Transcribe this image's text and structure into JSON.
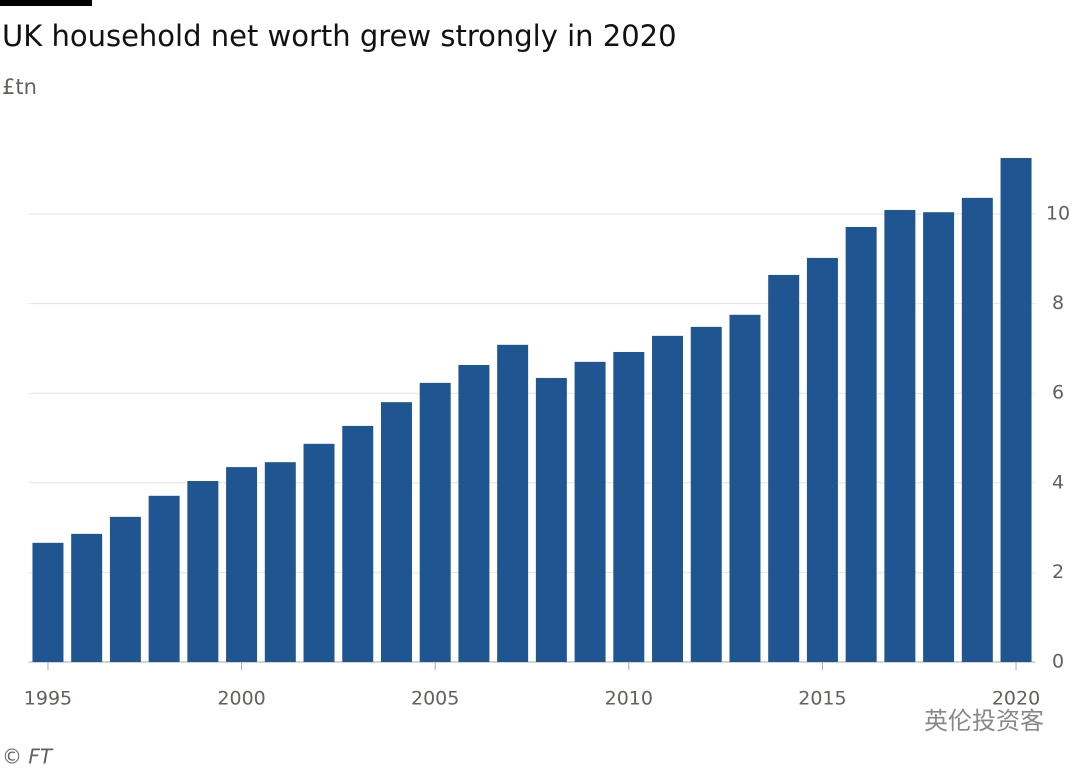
{
  "chart_data": {
    "type": "bar",
    "title": "UK household net worth grew strongly in 2020",
    "subtitle": "£tn",
    "source": "© FT",
    "watermark": "英伦投资客",
    "x": [
      1995,
      1996,
      1997,
      1998,
      1999,
      2000,
      2001,
      2002,
      2003,
      2004,
      2005,
      2006,
      2007,
      2008,
      2009,
      2010,
      2011,
      2012,
      2013,
      2014,
      2015,
      2016,
      2017,
      2018,
      2019,
      2020
    ],
    "values": [
      2.66,
      2.86,
      3.24,
      3.71,
      4.04,
      4.35,
      4.46,
      4.87,
      5.27,
      5.8,
      6.23,
      6.63,
      7.08,
      6.34,
      6.7,
      6.92,
      7.28,
      7.48,
      7.75,
      8.64,
      9.02,
      9.71,
      10.09,
      10.04,
      10.36,
      11.25
    ],
    "color": "#1f5591",
    "xlim": [
      1994.5,
      2020.5
    ],
    "xticks": [
      1995,
      2000,
      2005,
      2010,
      2015,
      2020
    ],
    "ylim": [
      0,
      11.5
    ],
    "yticks": [
      0,
      2,
      4,
      6,
      8,
      10
    ],
    "grid": true
  }
}
